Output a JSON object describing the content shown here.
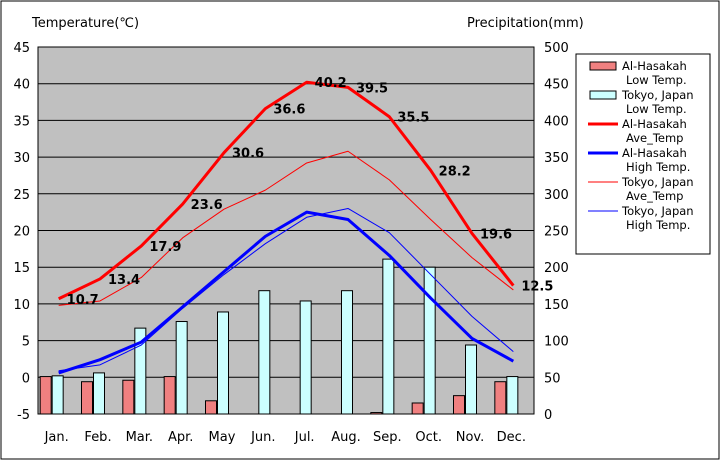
{
  "chart_data": {
    "type": "bar",
    "categories": [
      "Jan.",
      "Feb.",
      "Mar.",
      "Apr.",
      "May",
      "Jun.",
      "Jul.",
      "Aug.",
      "Sep.",
      "Oct.",
      "Nov.",
      "Dec."
    ],
    "y_left": {
      "title": "Temperature(℃)",
      "range": [
        -5,
        45
      ],
      "ticks": [
        "-5",
        "0",
        "5",
        "10",
        "15",
        "20",
        "25",
        "30",
        "35",
        "40",
        "45"
      ]
    },
    "y_right": {
      "title": "Precipitation(mm)",
      "range": [
        0,
        500
      ],
      "ticks": [
        "0",
        "50",
        "100",
        "150",
        "200",
        "250",
        "300",
        "350",
        "400",
        "450",
        "500"
      ]
    },
    "grid": true,
    "legend_position": "right",
    "bar_series": [
      {
        "name": "Al-Hasakah Low Temp.",
        "legend_lines": [
          "Al-Hasakah",
          "Low Temp."
        ],
        "color": "#f08080",
        "axis": "right",
        "values": [
          51,
          44,
          46,
          51,
          18,
          0,
          0,
          0,
          2,
          15,
          25,
          44
        ]
      },
      {
        "name": "Tokyo, Japan Low Temp.",
        "legend_lines": [
          "Tokyo, Japan",
          "Low Temp."
        ],
        "color": "#ccffff",
        "axis": "right",
        "values": [
          52,
          56,
          117,
          126,
          139,
          168,
          154,
          168,
          211,
          200,
          94,
          51
        ]
      }
    ],
    "line_series": [
      {
        "name": "Al-Hasakah Ave_Temp",
        "legend_lines": [
          "Al-Hasakah",
          "Ave_Temp"
        ],
        "color": "#ff0000",
        "width": 3,
        "axis": "left",
        "values": [
          10.7,
          13.4,
          17.9,
          23.6,
          30.6,
          36.6,
          40.2,
          39.5,
          35.5,
          28.2,
          19.6,
          12.5
        ],
        "labels": [
          "10.7",
          "13.4",
          "17.9",
          "23.6",
          "30.6",
          "36.6",
          "40.2",
          "39.5",
          "35.5",
          "28.2",
          "19.6",
          "12.5"
        ]
      },
      {
        "name": "Al-Hasakah High Temp.",
        "legend_lines": [
          "Al-Hasakah",
          "High Temp."
        ],
        "color": "#0000ff",
        "width": 3,
        "axis": "left",
        "values": [
          0.6,
          2.4,
          4.8,
          9.6,
          14.4,
          19.2,
          22.5,
          21.5,
          16.6,
          10.8,
          5.3,
          2.2
        ]
      },
      {
        "name": "Tokyo, Japan Ave_Temp",
        "legend_lines": [
          "Tokyo, Japan",
          "Ave_Temp"
        ],
        "color": "#ff0000",
        "width": 1,
        "axis": "left",
        "values": [
          9.8,
          10.4,
          13.6,
          19.0,
          22.9,
          25.5,
          29.2,
          30.8,
          26.9,
          21.5,
          16.3,
          11.9
        ]
      },
      {
        "name": "Tokyo, Japan High Temp.",
        "legend_lines": [
          "Tokyo, Japan",
          "High Temp."
        ],
        "color": "#0000ff",
        "width": 1,
        "axis": "left",
        "values": [
          0.9,
          1.7,
          4.4,
          9.4,
          14.0,
          18.2,
          21.8,
          23.0,
          19.7,
          14.0,
          8.3,
          3.5
        ]
      }
    ]
  }
}
